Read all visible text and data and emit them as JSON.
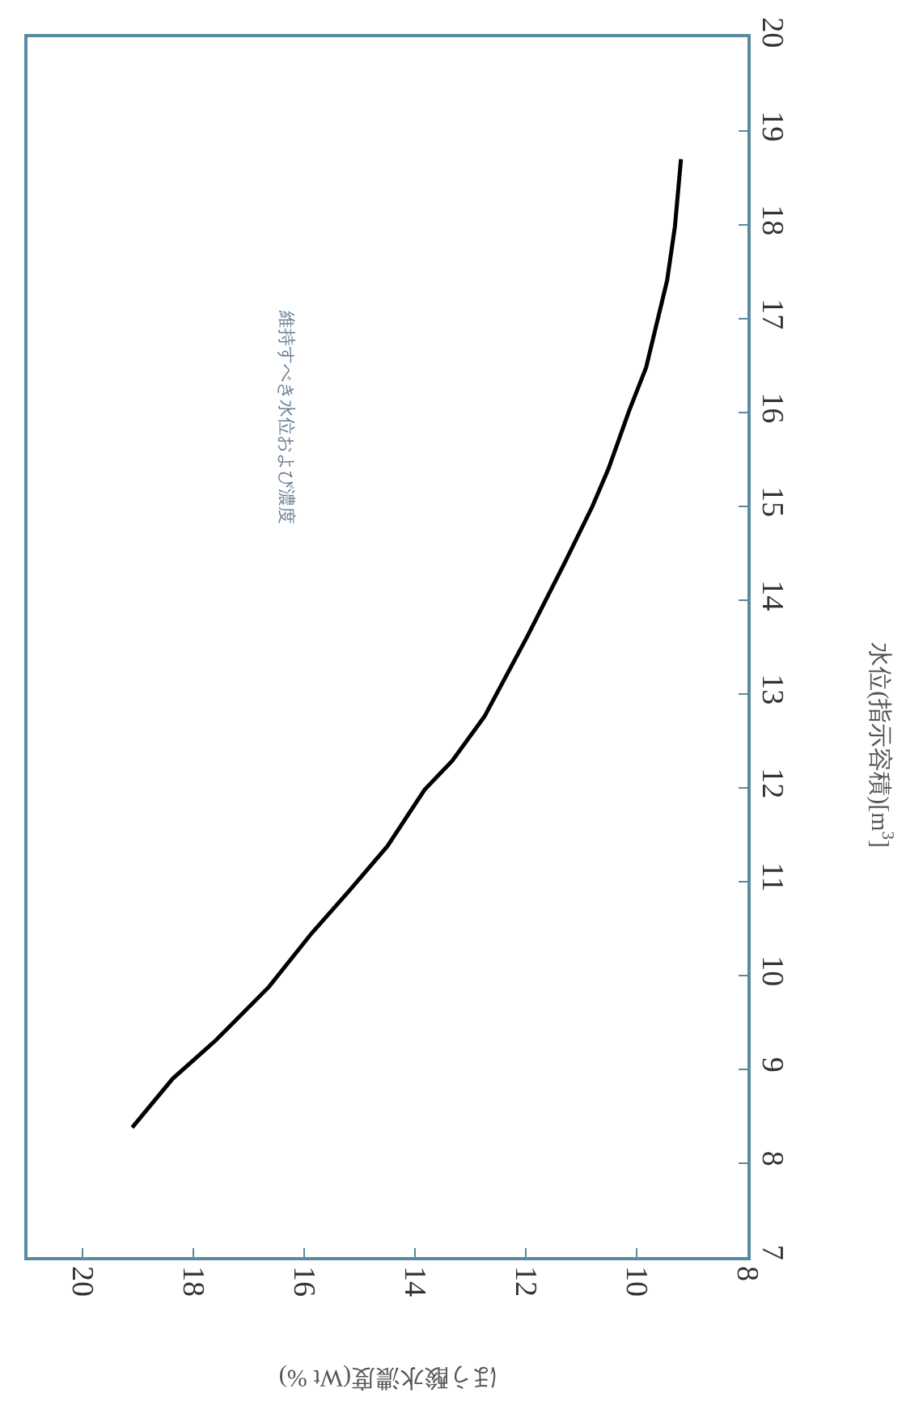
{
  "chart_data": {
    "type": "line",
    "xlabel": "ほう酸水濃度(Wt %)",
    "ylabel": "水位(指示容積)[m$^{3}$]",
    "annotations": [
      "維持すべき水位および濃度"
    ],
    "x": [
      19.11,
      18.38,
      17.6,
      16.64,
      15.87,
      15.18,
      14.5,
      13.83,
      13.33,
      12.75,
      11.97,
      11.29,
      10.8,
      10.51,
      10.13,
      9.83,
      9.45,
      9.31,
      9.2
    ],
    "series": [
      {
        "color": "#000000",
        "values": [
          8.38,
          8.9,
          9.31,
          9.88,
          10.45,
          10.91,
          11.38,
          11.98,
          12.29,
          12.76,
          13.62,
          14.41,
          15.0,
          15.4,
          16.03,
          16.48,
          17.41,
          17.98,
          18.7
        ]
      }
    ],
    "xlim": [
      21,
      8
    ],
    "xticks": [
      20,
      18,
      16,
      14,
      12,
      10,
      8
    ],
    "ylim": [
      7,
      20
    ],
    "yticks": [
      7,
      8,
      9,
      10,
      11,
      12,
      13,
      14,
      15,
      16,
      17,
      18,
      19,
      20
    ],
    "marker": "none",
    "line_style": "solid"
  }
}
